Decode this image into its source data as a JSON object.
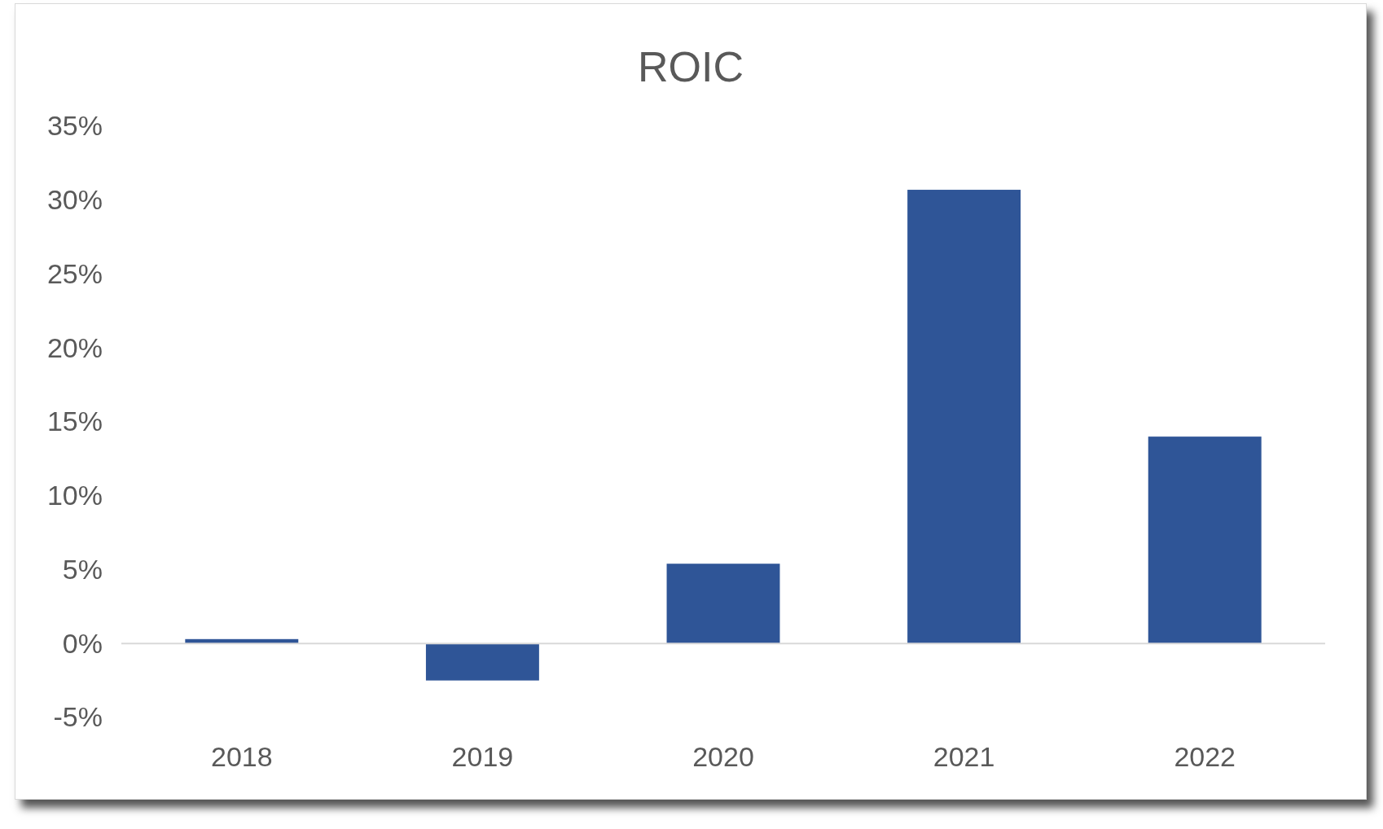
{
  "chart_data": {
    "type": "bar",
    "title": "ROIC",
    "categories": [
      "2018",
      "2019",
      "2020",
      "2021",
      "2022"
    ],
    "values": [
      0.3,
      -2.5,
      5.4,
      30.7,
      14.0
    ],
    "color": "#2f5597",
    "ylim": [
      -5,
      35
    ],
    "yticks": [
      {
        "value": -5,
        "label": "-5%"
      },
      {
        "value": 0,
        "label": "0%"
      },
      {
        "value": 5,
        "label": "5%"
      },
      {
        "value": 10,
        "label": "10%"
      },
      {
        "value": 15,
        "label": "15%"
      },
      {
        "value": 20,
        "label": "20%"
      },
      {
        "value": 25,
        "label": "25%"
      },
      {
        "value": 30,
        "label": "30%"
      },
      {
        "value": 35,
        "label": "35%"
      }
    ],
    "orientation": "vertical"
  }
}
